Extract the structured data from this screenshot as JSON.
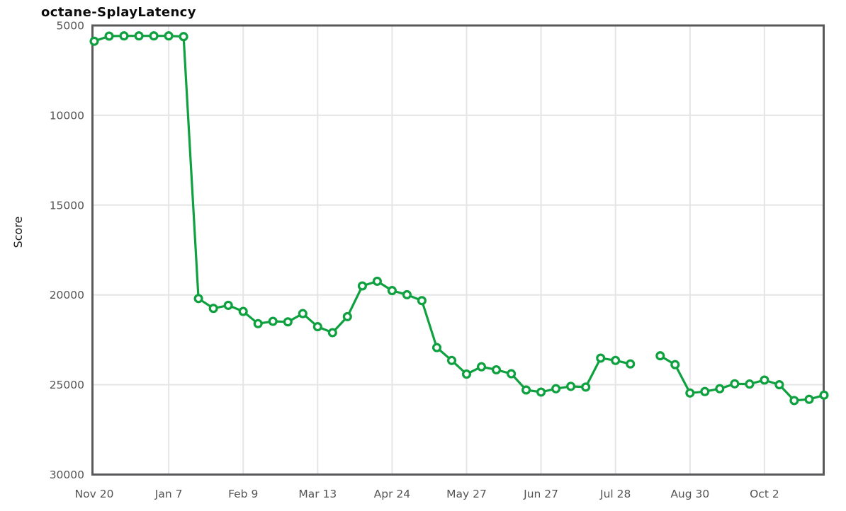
{
  "chart_data": {
    "type": "line",
    "title": "octane-SplayLatency",
    "ylabel": "Score",
    "xlabel": "",
    "grid": true,
    "legend": "none",
    "y_axis": {
      "inverted": true,
      "top_value": 5000,
      "bottom_value": 30000,
      "ticks": [
        5000,
        10000,
        15000,
        20000,
        25000,
        30000
      ]
    },
    "x_axis": {
      "tick_labels": [
        "Nov 20",
        "Jan 7",
        "Feb 9",
        "Mar 13",
        "Apr 24",
        "May 27",
        "Jun 27",
        "Jul 28",
        "Aug 30",
        "Oct 2"
      ],
      "tick_every_n_points": 5
    },
    "series": [
      {
        "name": "octane-SplayLatency",
        "color": "#0fa03f",
        "marker": "open-circle",
        "marker_fill": "#ffffff",
        "note": "null value = missing data point (gap in line between Jul 28 and Aug 30)",
        "values": [
          5880,
          5590,
          5580,
          5580,
          5580,
          5580,
          5620,
          20200,
          20750,
          20580,
          20920,
          21600,
          21470,
          21500,
          21040,
          21770,
          22100,
          21210,
          19500,
          19240,
          19760,
          19990,
          20320,
          22930,
          23650,
          24410,
          24000,
          24170,
          24390,
          25290,
          25410,
          25220,
          25090,
          25130,
          23520,
          23650,
          23840,
          null,
          23390,
          23880,
          25460,
          25380,
          25220,
          24950,
          24960,
          24740,
          25000,
          25880,
          25810,
          25580
        ]
      }
    ]
  },
  "colors": {
    "series_green": "#0fa03f",
    "plot_border": "#59595b",
    "gridline": "#e5e5e5",
    "tick_label": "#545456",
    "title_text": "#0b0b0b",
    "background": "#ffffff"
  }
}
